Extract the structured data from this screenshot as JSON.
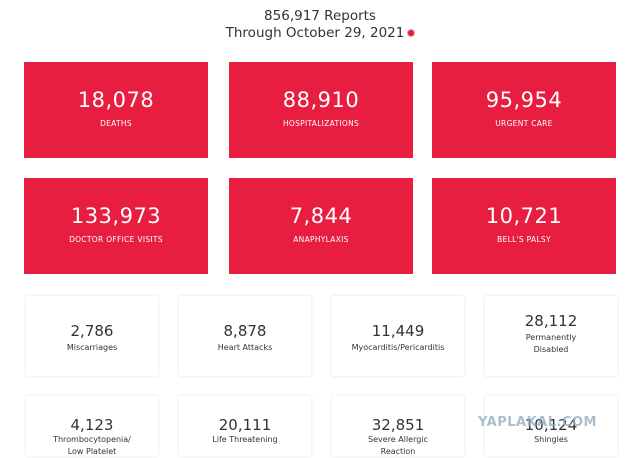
{
  "header": {
    "reports": "856,917 Reports",
    "through": "Through October 29, 2021"
  },
  "red_cards": [
    {
      "value": "18,078",
      "label": "DEATHS"
    },
    {
      "value": "88,910",
      "label": "HOSPITALIZATIONS"
    },
    {
      "value": "95,954",
      "label": "URGENT CARE"
    },
    {
      "value": "133,973",
      "label": "DOCTOR OFFICE VISITS"
    },
    {
      "value": "7,844",
      "label": "ANAPHYLAXIS"
    },
    {
      "value": "10,721",
      "label": "BELL'S PALSY"
    }
  ],
  "white_cards": [
    {
      "value": "2,786",
      "label": "Miscarriages"
    },
    {
      "value": "8,878",
      "label": "Heart Attacks"
    },
    {
      "value": "11,449",
      "label": "Myocarditis/Pericarditis"
    },
    {
      "value": "28,112",
      "label": "Permanently Disabled"
    },
    {
      "value": "4,123",
      "label": "Thrombocytopenia/ Low Platelet"
    },
    {
      "value": "20,111",
      "label": "Life Threatening"
    },
    {
      "value": "32,851",
      "label": "Severe Allergic Reaction"
    },
    {
      "value": "10,124",
      "label": "Shingles"
    }
  ],
  "watermark": "YAPLAKAL.COM",
  "colors": {
    "card_red": "#e81e41",
    "dot_red": "#e0203a"
  }
}
